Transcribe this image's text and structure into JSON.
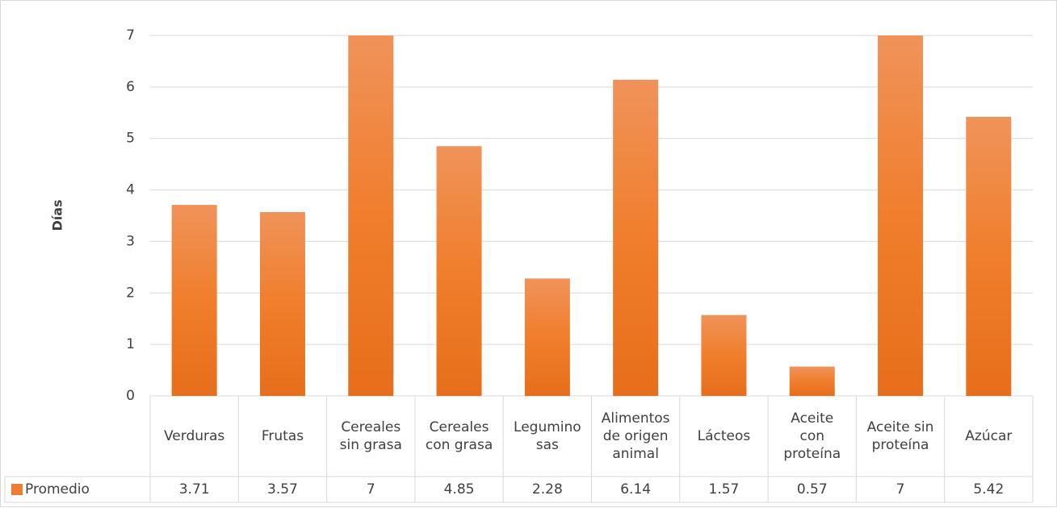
{
  "chart_data": {
    "type": "bar",
    "categories": [
      [
        "Verduras"
      ],
      [
        "Frutas"
      ],
      [
        "Cereales",
        "sin grasa"
      ],
      [
        "Cereales",
        "con grasa"
      ],
      [
        "Legumino",
        "sas"
      ],
      [
        "Alimentos",
        "de origen",
        "animal"
      ],
      [
        "Lácteos"
      ],
      [
        "Aceite",
        "con",
        "proteína"
      ],
      [
        "Aceite sin",
        "proteína"
      ],
      [
        "Azúcar"
      ]
    ],
    "series": [
      {
        "name": "Promedio",
        "values": [
          3.71,
          3.57,
          7,
          4.85,
          2.28,
          6.14,
          1.57,
          0.57,
          7,
          5.42
        ],
        "labels": [
          "3.71",
          "3.57",
          "7",
          "4.85",
          "2.28",
          "6.14",
          "1.57",
          "0.57",
          "7",
          "5.42"
        ],
        "color": "#ed7d31"
      }
    ],
    "ylabel": "Días",
    "xlabel": "",
    "ylim": [
      0,
      7
    ],
    "yticks": [
      0,
      1,
      2,
      3,
      4,
      5,
      6,
      7
    ],
    "grid": true,
    "legend": "data-table-left",
    "data_table": true
  }
}
